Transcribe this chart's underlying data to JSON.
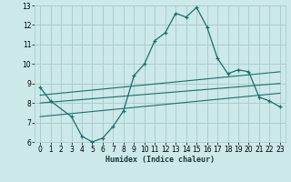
{
  "title": "",
  "xlabel": "Humidex (Indice chaleur)",
  "background_color": "#cce8e8",
  "grid_color": "#aacece",
  "line_color": "#1a6e6e",
  "xlim": [
    -0.5,
    23.5
  ],
  "ylim": [
    6,
    13
  ],
  "yticks": [
    6,
    7,
    8,
    9,
    10,
    11,
    12,
    13
  ],
  "xticks": [
    0,
    1,
    2,
    3,
    4,
    5,
    6,
    7,
    8,
    9,
    10,
    11,
    12,
    13,
    14,
    15,
    16,
    17,
    18,
    19,
    20,
    21,
    22,
    23
  ],
  "main_line_x": [
    0,
    1,
    3,
    4,
    5,
    6,
    7,
    8,
    9,
    10,
    11,
    12,
    13,
    14,
    15,
    16,
    17,
    18,
    19,
    20,
    21,
    22,
    23
  ],
  "main_line_y": [
    8.8,
    8.1,
    7.3,
    6.3,
    6.0,
    6.2,
    6.8,
    7.6,
    9.4,
    10.0,
    11.2,
    11.6,
    12.6,
    12.4,
    12.9,
    11.9,
    10.3,
    9.5,
    9.7,
    9.6,
    8.3,
    8.1,
    7.8
  ],
  "line2_x": [
    0,
    23
  ],
  "line2_y": [
    8.4,
    9.6
  ],
  "line3_x": [
    0,
    23
  ],
  "line3_y": [
    8.0,
    9.0
  ],
  "line4_x": [
    0,
    23
  ],
  "line4_y": [
    7.3,
    8.5
  ]
}
